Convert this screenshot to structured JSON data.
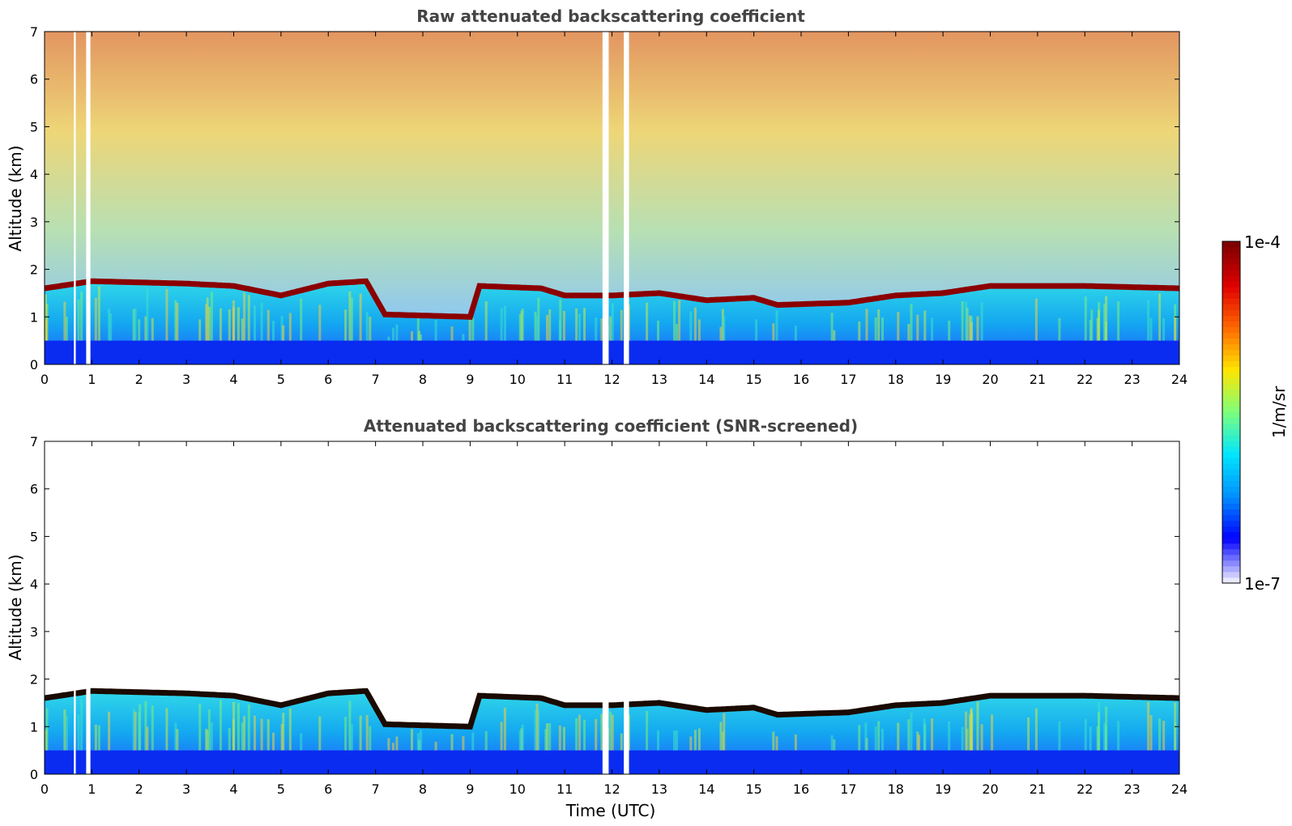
{
  "chart_data": [
    {
      "type": "heatmap",
      "title": "Raw attenuated backscattering coefficient",
      "xlabel": "",
      "ylabel": "Altitude (km)",
      "xlim": [
        0,
        24
      ],
      "ylim": [
        0,
        7
      ],
      "x_ticks": [
        0,
        1,
        2,
        3,
        4,
        5,
        6,
        7,
        8,
        9,
        10,
        11,
        12,
        13,
        14,
        15,
        16,
        17,
        18,
        19,
        20,
        21,
        22,
        23,
        24
      ],
      "y_ticks": [
        0,
        1,
        2,
        3,
        4,
        5,
        6,
        7
      ],
      "screened": false,
      "data_gaps_utc": [
        [
          0.62,
          0.66
        ],
        [
          0.88,
          0.97
        ],
        [
          11.8,
          11.93
        ],
        [
          12.25,
          12.36
        ]
      ],
      "top_layer_km": [
        [
          0,
          1.6
        ],
        [
          1,
          1.75
        ],
        [
          3,
          1.7
        ],
        [
          4,
          1.65
        ],
        [
          5,
          1.45
        ],
        [
          6,
          1.7
        ],
        [
          6.8,
          1.75
        ],
        [
          7.2,
          1.05
        ],
        [
          9,
          1.0
        ],
        [
          9.2,
          1.65
        ],
        [
          10.5,
          1.6
        ],
        [
          11,
          1.45
        ],
        [
          12,
          1.45
        ],
        [
          13,
          1.5
        ],
        [
          14,
          1.35
        ],
        [
          15,
          1.4
        ],
        [
          15.5,
          1.25
        ],
        [
          17,
          1.3
        ],
        [
          18,
          1.45
        ],
        [
          19,
          1.5
        ],
        [
          20,
          1.65
        ],
        [
          22,
          1.65
        ],
        [
          24,
          1.6
        ]
      ]
    },
    {
      "type": "heatmap",
      "title": "Attenuated backscattering coefficient (SNR-screened)",
      "xlabel": "Time (UTC)",
      "ylabel": "Altitude (km)",
      "xlim": [
        0,
        24
      ],
      "ylim": [
        0,
        7
      ],
      "x_ticks": [
        0,
        1,
        2,
        3,
        4,
        5,
        6,
        7,
        8,
        9,
        10,
        11,
        12,
        13,
        14,
        15,
        16,
        17,
        18,
        19,
        20,
        21,
        22,
        23,
        24
      ],
      "y_ticks": [
        0,
        1,
        2,
        3,
        4,
        5,
        6,
        7
      ],
      "screened": true,
      "data_gaps_utc": [
        [
          0.62,
          0.66
        ],
        [
          0.88,
          0.97
        ],
        [
          11.8,
          11.93
        ],
        [
          12.25,
          12.36
        ]
      ],
      "top_layer_km": [
        [
          0,
          1.6
        ],
        [
          1,
          1.75
        ],
        [
          3,
          1.7
        ],
        [
          4,
          1.65
        ],
        [
          5,
          1.45
        ],
        [
          6,
          1.7
        ],
        [
          6.8,
          1.75
        ],
        [
          7.2,
          1.05
        ],
        [
          9,
          1.0
        ],
        [
          9.2,
          1.65
        ],
        [
          10.5,
          1.6
        ],
        [
          11,
          1.45
        ],
        [
          12,
          1.45
        ],
        [
          13,
          1.5
        ],
        [
          14,
          1.35
        ],
        [
          15,
          1.4
        ],
        [
          15.5,
          1.25
        ],
        [
          17,
          1.3
        ],
        [
          18,
          1.45
        ],
        [
          19,
          1.5
        ],
        [
          20,
          1.65
        ],
        [
          22,
          1.65
        ],
        [
          24,
          1.6
        ]
      ]
    }
  ],
  "colorbar": {
    "max_label": "1e-4",
    "min_label": "1e-7",
    "label": "1/m/sr",
    "scale": "log",
    "colormap": [
      "#E8E8FF",
      "#0000FF",
      "#0090FF",
      "#00E5FF",
      "#7CFF7C",
      "#FFE600",
      "#FF6A00",
      "#E00000",
      "#800000"
    ]
  },
  "colors": {
    "axis": "#000000",
    "title": "#444444",
    "background": "#ffffff",
    "layer_top": "#8B0000"
  }
}
